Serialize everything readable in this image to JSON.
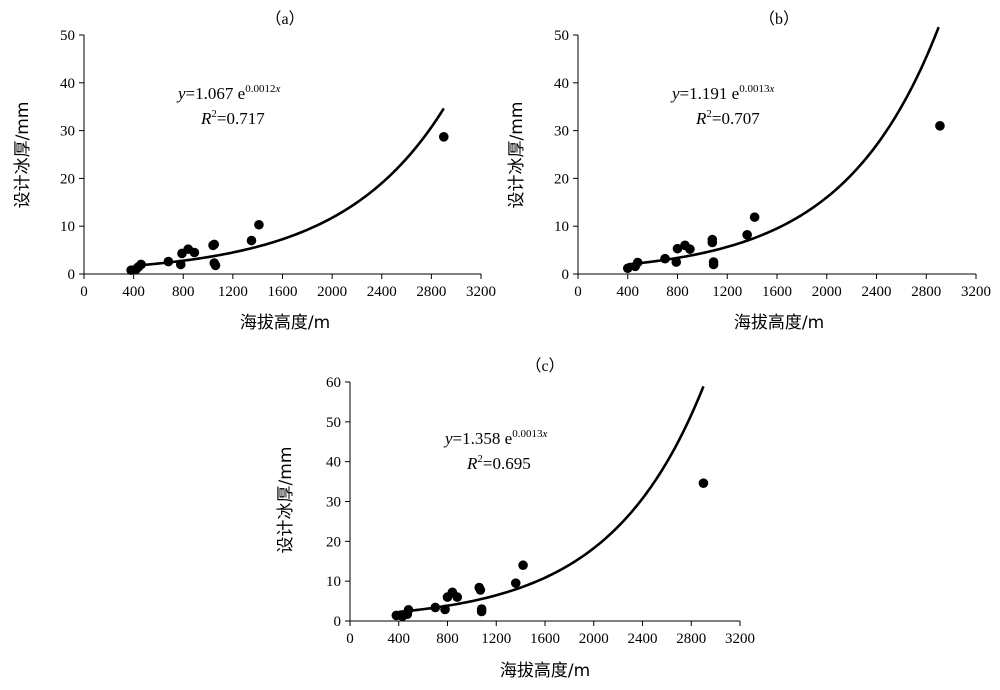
{
  "chart_data": [
    {
      "type": "scatter",
      "panel_label": "（a）",
      "xlabel": "海拔高度/m",
      "ylabel": "设计冰厚/mm",
      "xlim": [
        0,
        3200
      ],
      "ylim": [
        0,
        50
      ],
      "xticks": [
        "0",
        "400",
        "800",
        "1200",
        "1600",
        "2000",
        "2400",
        "2800",
        "3200"
      ],
      "yticks": [
        "0",
        "10",
        "20",
        "30",
        "40",
        "50"
      ],
      "equation": {
        "var": "y",
        "rest": "=1.067  e",
        "exponent": "0.0012",
        "exp_var": "x"
      },
      "r2": {
        "var": "R",
        "sup": "2",
        "rest": "=0.717"
      },
      "fit": {
        "a": 1.067,
        "b": 0.0012,
        "x_from": 400,
        "x_to": 2900
      },
      "points": [
        [
          380,
          0.8
        ],
        [
          420,
          1.0
        ],
        [
          440,
          1.5
        ],
        [
          460,
          2.0
        ],
        [
          680,
          2.6
        ],
        [
          780,
          2.0
        ],
        [
          790,
          4.3
        ],
        [
          840,
          5.2
        ],
        [
          890,
          4.5
        ],
        [
          1040,
          6.0
        ],
        [
          1050,
          6.2
        ],
        [
          1050,
          2.3
        ],
        [
          1060,
          1.8
        ],
        [
          1350,
          7.0
        ],
        [
          1410,
          10.3
        ],
        [
          2900,
          28.7
        ]
      ]
    },
    {
      "type": "scatter",
      "panel_label": "（b）",
      "xlabel": "海拔高度/m",
      "ylabel": "设计冰厚/mm",
      "xlim": [
        0,
        3200
      ],
      "ylim": [
        0,
        50
      ],
      "xticks": [
        "0",
        "400",
        "800",
        "1200",
        "1600",
        "2000",
        "2400",
        "2800",
        "3200"
      ],
      "yticks": [
        "0",
        "10",
        "20",
        "30",
        "40",
        "50"
      ],
      "equation": {
        "var": "y",
        "rest": "=1.191  e",
        "exponent": "0.0013",
        "exp_var": "x"
      },
      "r2": {
        "var": "R",
        "sup": "2",
        "rest": "=0.707"
      },
      "fit": {
        "a": 1.191,
        "b": 0.0013,
        "x_from": 400,
        "x_to": 2900
      },
      "points": [
        [
          400,
          1.2
        ],
        [
          460,
          1.6
        ],
        [
          480,
          2.4
        ],
        [
          700,
          3.2
        ],
        [
          790,
          2.5
        ],
        [
          800,
          5.3
        ],
        [
          860,
          6.0
        ],
        [
          900,
          5.2
        ],
        [
          1080,
          7.2
        ],
        [
          1080,
          6.6
        ],
        [
          1090,
          2.5
        ],
        [
          1090,
          2.0
        ],
        [
          1360,
          8.2
        ],
        [
          1420,
          11.9
        ],
        [
          2910,
          31.0
        ]
      ]
    },
    {
      "type": "scatter",
      "panel_label": "（c）",
      "xlabel": "海拔高度/m",
      "ylabel": "设计冰厚/mm",
      "xlim": [
        0,
        3200
      ],
      "ylim": [
        0,
        60
      ],
      "xticks": [
        "0",
        "400",
        "800",
        "1200",
        "1600",
        "2000",
        "2400",
        "2800",
        "3200"
      ],
      "yticks": [
        "0",
        "10",
        "20",
        "30",
        "40",
        "50",
        "60"
      ],
      "equation": {
        "var": "y",
        "rest": "=1.358  e",
        "exponent": "0.0013",
        "exp_var": "x"
      },
      "r2": {
        "var": "R",
        "sup": "2",
        "rest": "=0.695"
      },
      "fit": {
        "a": 1.358,
        "b": 0.0013,
        "x_from": 400,
        "x_to": 2900
      },
      "points": [
        [
          380,
          1.4
        ],
        [
          430,
          1.2
        ],
        [
          470,
          1.7
        ],
        [
          480,
          2.8
        ],
        [
          700,
          3.4
        ],
        [
          780,
          2.9
        ],
        [
          800,
          6.0
        ],
        [
          840,
          7.2
        ],
        [
          880,
          6.0
        ],
        [
          1060,
          8.4
        ],
        [
          1070,
          7.8
        ],
        [
          1080,
          3.0
        ],
        [
          1080,
          2.4
        ],
        [
          1360,
          9.5
        ],
        [
          1420,
          14.0
        ],
        [
          2900,
          34.6
        ]
      ]
    }
  ]
}
